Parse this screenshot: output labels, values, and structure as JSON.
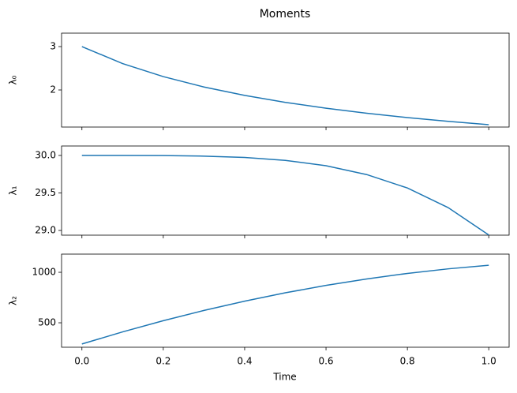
{
  "title": "Moments",
  "xlabel": "Time",
  "x": [
    0,
    0.1,
    0.2,
    0.3,
    0.4,
    0.5,
    0.6,
    0.7,
    0.8,
    0.9,
    1.0
  ],
  "xlim": [
    -0.05,
    1.05
  ],
  "xticks": [
    {
      "value": 0,
      "label": "0.0"
    },
    0.2,
    0.4,
    0.6,
    0.8,
    {
      "value": 1,
      "label": "1.0"
    }
  ],
  "chart_data": [
    {
      "type": "line",
      "ylabel": "λ₀",
      "series": [
        {
          "color": "#1f77b4",
          "values": [
            3,
            2.609,
            2.308,
            2.069,
            1.875,
            1.714,
            1.579,
            1.463,
            1.364,
            1.277,
            1.2
          ]
        }
      ],
      "ylim": [
        1.145,
        3.31
      ],
      "yticks": [
        2,
        3
      ]
    },
    {
      "type": "line",
      "ylabel": "λ₁",
      "series": [
        {
          "color": "#1f77b4",
          "values": [
            30,
            29.9999,
            29.998,
            29.991,
            29.973,
            29.934,
            29.863,
            29.745,
            29.566,
            29.305,
            28.94
          ]
        }
      ],
      "ylim": [
        28.937,
        30.126
      ],
      "yticks": [
        {
          "value": 29,
          "label": "29.0"
        },
        29.5,
        {
          "value": 30,
          "label": "30.0"
        }
      ]
    },
    {
      "type": "line",
      "ylabel": "λ₂",
      "series": [
        {
          "color": "#1f77b4",
          "values": [
            290,
            410,
            521,
            622,
            714,
            797,
            870,
            934,
            989,
            1034,
            1070
          ]
        }
      ],
      "ylim": [
        258,
        1180
      ],
      "yticks": [
        500,
        1000
      ]
    }
  ]
}
